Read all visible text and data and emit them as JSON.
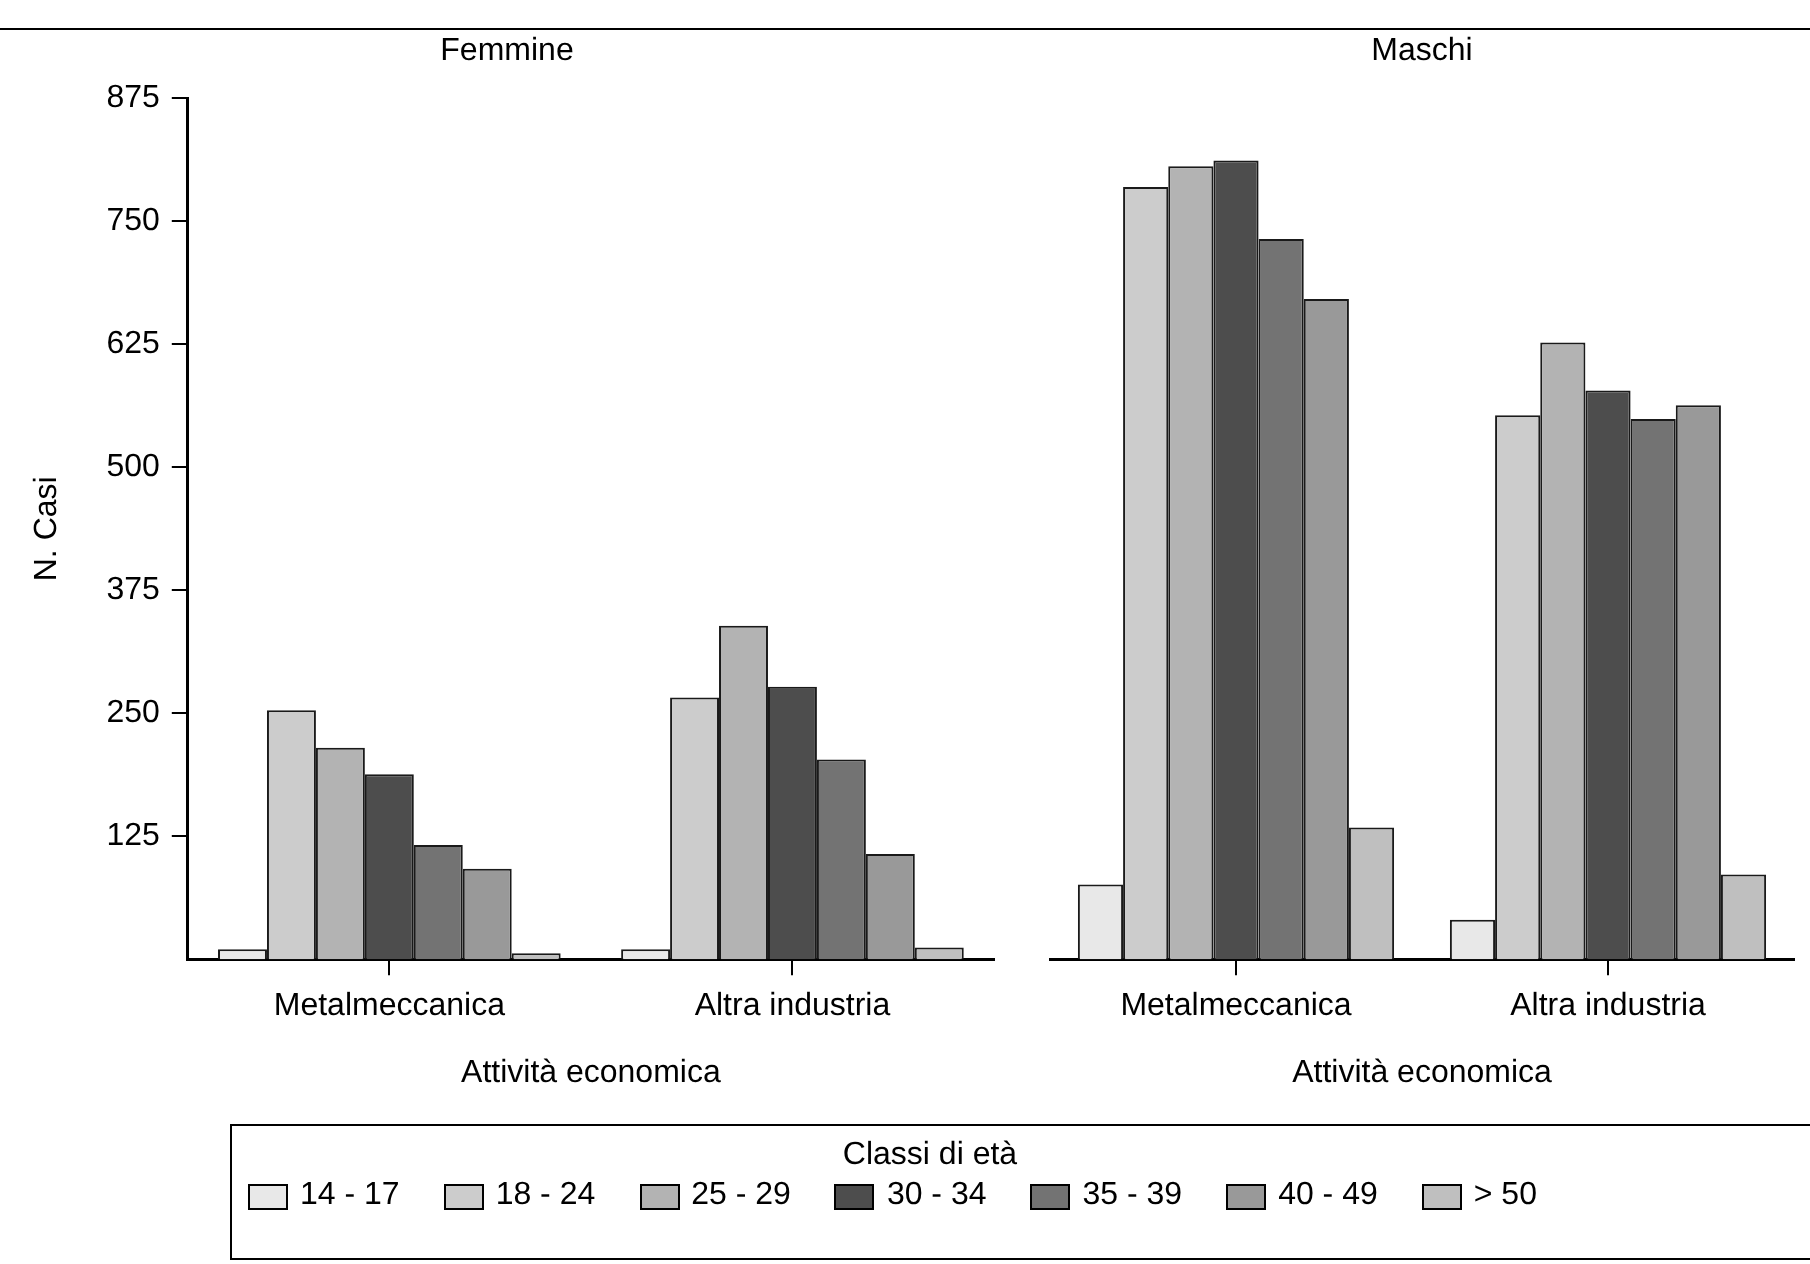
{
  "chart_data": [
    {
      "type": "bar",
      "title": "Femmine",
      "xlabel": "Attività economica",
      "ylabel": "N. Casi",
      "categories": [
        "Metalmeccanica",
        "Altra industria"
      ],
      "series": [
        {
          "name": "14 - 17",
          "color": "#e8e8e8",
          "values": [
            10,
            10
          ]
        },
        {
          "name": "18 - 24",
          "color": "#cccccc",
          "values": [
            253,
            266
          ]
        },
        {
          "name": "25 - 29",
          "color": "#b3b3b3",
          "values": [
            215,
            339
          ]
        },
        {
          "name": "30 - 34",
          "color": "#4d4d4d",
          "values": [
            188,
            277
          ]
        },
        {
          "name": "35 - 39",
          "color": "#737373",
          "values": [
            116,
            203
          ]
        },
        {
          "name": "40 - 49",
          "color": "#999999",
          "values": [
            92,
            107
          ]
        },
        {
          "name": "> 50",
          "color": "#bfbfbf",
          "values": [
            6,
            12
          ]
        }
      ],
      "ylim": [
        0,
        875
      ],
      "yticks": [
        125,
        250,
        375,
        500,
        625,
        750,
        875
      ],
      "legend": "bottom",
      "legend_title": "Classi di età"
    },
    {
      "type": "bar",
      "title": "Maschi",
      "xlabel": "Attività economica",
      "categories": [
        "Metalmeccanica",
        "Altra industria"
      ],
      "series": [
        {
          "color": "#e8e8e8",
          "values": [
            76,
            40
          ]
        },
        {
          "color": "#cccccc",
          "values": [
            785,
            553
          ]
        },
        {
          "color": "#b3b3b3",
          "values": [
            806,
            627
          ]
        },
        {
          "color": "#4d4d4d",
          "values": [
            812,
            578
          ]
        },
        {
          "color": "#737373",
          "values": [
            732,
            549
          ]
        },
        {
          "color": "#999999",
          "values": [
            671,
            563
          ]
        },
        {
          "color": "#bfbfbf",
          "values": [
            134,
            86
          ]
        }
      ],
      "ylim": [
        0,
        875
      ],
      "yticks": [
        125,
        250,
        375,
        500,
        625,
        750,
        875
      ],
      "tick_labels": "x"
    }
  ]
}
